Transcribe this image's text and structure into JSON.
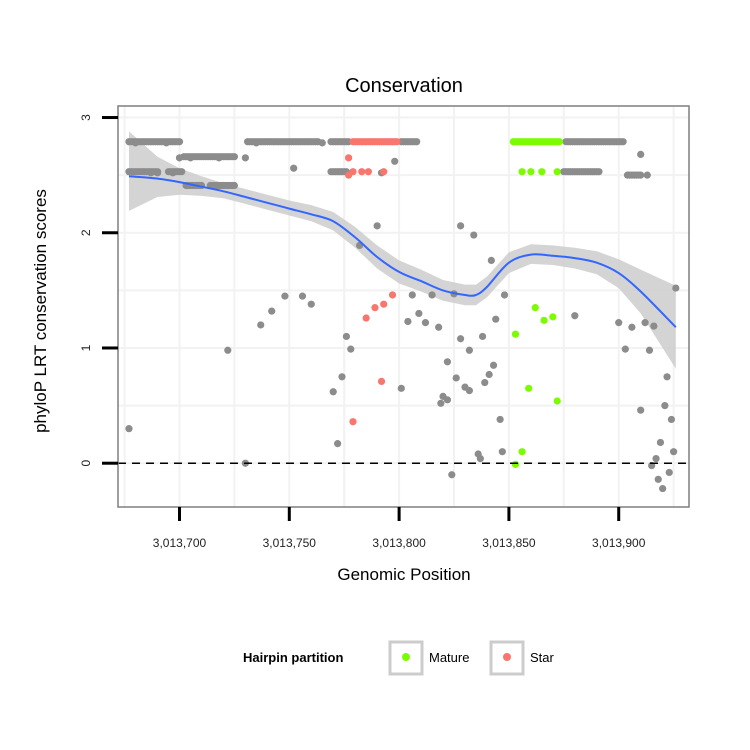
{
  "chart_data": {
    "type": "scatter",
    "title": "Conservation",
    "xlabel": "Genomic Position",
    "ylabel": "phyloP LRT conservation scores",
    "xlim": [
      3013672,
      3013932
    ],
    "ylim": [
      -0.38,
      3.1
    ],
    "x_ticks": [
      3013700,
      3013750,
      3013800,
      3013850,
      3013900
    ],
    "x_tick_labels": [
      "3,013,700",
      "3,013,750",
      "3,013,800",
      "3,013,850",
      "3,013,900"
    ],
    "y_ticks": [
      0,
      1,
      2,
      3
    ],
    "y_tick_labels": [
      "0",
      "1",
      "2",
      "3"
    ],
    "reference_line": {
      "y": 0,
      "style": "dashed"
    },
    "legend": {
      "title": "Hairpin partition",
      "position": "bottom",
      "entries": [
        {
          "label": "Mature",
          "color": "#7CFC00"
        },
        {
          "label": "Star",
          "color": "#F8766D"
        }
      ]
    },
    "colors": {
      "other": "#8c8c8c",
      "mature": "#7CFC00",
      "star": "#F8766D",
      "smooth_line": "#3366FF",
      "ribbon": "#cccccc",
      "panel_border": "#7f7f7f",
      "grid": "#f2f2f2"
    },
    "series": [
      {
        "name": "Other",
        "color": "#8c8c8c",
        "ranges": [
          {
            "x_from": 3013677,
            "x_to": 3013700,
            "step": 1,
            "y": 2.79
          },
          {
            "x_from": 3013702,
            "x_to": 3013725,
            "step": 1,
            "y": 2.66
          },
          {
            "x_from": 3013731,
            "x_to": 3013763,
            "step": 1,
            "y": 2.79
          },
          {
            "x_from": 3013769,
            "x_to": 3013777,
            "step": 1,
            "y": 2.79
          },
          {
            "x_from": 3013801,
            "x_to": 3013808,
            "step": 1,
            "y": 2.79
          },
          {
            "x_from": 3013876,
            "x_to": 3013902,
            "step": 1,
            "y": 2.79
          },
          {
            "x_from": 3013677,
            "x_to": 3013690,
            "step": 1,
            "y": 2.53
          },
          {
            "x_from": 3013695,
            "x_to": 3013701,
            "step": 1,
            "y": 2.53
          },
          {
            "x_from": 3013703,
            "x_to": 3013710,
            "step": 1,
            "y": 2.41
          },
          {
            "x_from": 3013714,
            "x_to": 3013724,
            "step": 1,
            "y": 2.41
          },
          {
            "x_from": 3013769,
            "x_to": 3013776,
            "step": 1,
            "y": 2.53
          },
          {
            "x_from": 3013875,
            "x_to": 3013891,
            "step": 1,
            "y": 2.53
          },
          {
            "x_from": 3013904,
            "x_to": 3013910,
            "step": 1,
            "y": 2.5
          }
        ],
        "points": [
          [
            3013677,
            0.3
          ],
          [
            3013680,
            2.78
          ],
          [
            3013687,
            2.52
          ],
          [
            3013690,
            2.52
          ],
          [
            3013694,
            2.78
          ],
          [
            3013697,
            2.52
          ],
          [
            3013700,
            2.65
          ],
          [
            3013705,
            2.65
          ],
          [
            3013710,
            2.41
          ],
          [
            3013718,
            2.65
          ],
          [
            3013722,
            0.98
          ],
          [
            3013725,
            2.41
          ],
          [
            3013730,
            2.65
          ],
          [
            3013730,
            0
          ],
          [
            3013735,
            2.78
          ],
          [
            3013737,
            1.2
          ],
          [
            3013742,
            1.32
          ],
          [
            3013748,
            1.45
          ],
          [
            3013752,
            2.56
          ],
          [
            3013756,
            1.45
          ],
          [
            3013760,
            1.38
          ],
          [
            3013765,
            2.78
          ],
          [
            3013770,
            0.62
          ],
          [
            3013772,
            0.17
          ],
          [
            3013774,
            0.75
          ],
          [
            3013776,
            1.1
          ],
          [
            3013778,
            0.99
          ],
          [
            3013782,
            1.89
          ],
          [
            3013790,
            2.06
          ],
          [
            3013792,
            2.52
          ],
          [
            3013798,
            2.62
          ],
          [
            3013801,
            0.65
          ],
          [
            3013804,
            1.23
          ],
          [
            3013806,
            1.46
          ],
          [
            3013809,
            1.3
          ],
          [
            3013812,
            1.22
          ],
          [
            3013815,
            1.46
          ],
          [
            3013818,
            1.18
          ],
          [
            3013820,
            0.58
          ],
          [
            3013822,
            0.88
          ],
          [
            3013825,
            1.47
          ],
          [
            3013826,
            0.74
          ],
          [
            3013828,
            1.08
          ],
          [
            3013830,
            0.66
          ],
          [
            3013832,
            0.63
          ],
          [
            3013834,
            1.98
          ],
          [
            3013836,
            0.08
          ],
          [
            3013838,
            1.1
          ],
          [
            3013841,
            0.77
          ],
          [
            3013842,
            1.76
          ],
          [
            3013844,
            1.25
          ],
          [
            3013846,
            0.38
          ],
          [
            3013847,
            0.1
          ],
          [
            3013848,
            1.46
          ],
          [
            3013828,
            2.06
          ],
          [
            3013832,
            0.98
          ],
          [
            3013824,
            -0.1
          ],
          [
            3013837,
            0.04
          ],
          [
            3013822,
            0.55
          ],
          [
            3013819,
            0.52
          ],
          [
            3013839,
            0.7
          ],
          [
            3013843,
            0.85
          ],
          [
            3013880,
            1.28
          ],
          [
            3013900,
            1.22
          ],
          [
            3013903,
            0.99
          ],
          [
            3013906,
            1.18
          ],
          [
            3013910,
            0.46
          ],
          [
            3013910,
            2.68
          ],
          [
            3013912,
            1.22
          ],
          [
            3013914,
            0.98
          ],
          [
            3013915,
            -0.02
          ],
          [
            3013917,
            0.04
          ],
          [
            3013918,
            -0.14
          ],
          [
            3013920,
            -0.22
          ],
          [
            3013921,
            0.5
          ],
          [
            3013922,
            0.75
          ],
          [
            3013923,
            -0.08
          ],
          [
            3013924,
            0.38
          ],
          [
            3013925,
            0.1
          ],
          [
            3013926,
            1.52
          ],
          [
            3013919,
            0.18
          ],
          [
            3013913,
            2.5
          ],
          [
            3013916,
            1.19
          ]
        ]
      },
      {
        "name": "Mature",
        "color": "#7CFC00",
        "ranges": [
          {
            "x_from": 3013852,
            "x_to": 3013873,
            "step": 1,
            "y": 2.79
          }
        ],
        "points": [
          [
            3013856,
            2.53
          ],
          [
            3013860,
            2.53
          ],
          [
            3013865,
            2.53
          ],
          [
            3013872,
            2.53
          ],
          [
            3013853,
            1.12
          ],
          [
            3013856,
            0.1
          ],
          [
            3013853,
            -0.01
          ],
          [
            3013859,
            0.65
          ],
          [
            3013862,
            1.35
          ],
          [
            3013866,
            1.24
          ],
          [
            3013870,
            1.27
          ],
          [
            3013872,
            0.54
          ]
        ]
      },
      {
        "name": "Star",
        "color": "#F8766D",
        "ranges": [
          {
            "x_from": 3013779,
            "x_to": 3013799,
            "step": 1,
            "y": 2.79
          }
        ],
        "points": [
          [
            3013777,
            2.65
          ],
          [
            3013779,
            2.53
          ],
          [
            3013783,
            2.53
          ],
          [
            3013786,
            2.53
          ],
          [
            3013793,
            2.53
          ],
          [
            3013777,
            2.5
          ],
          [
            3013785,
            1.26
          ],
          [
            3013789,
            1.35
          ],
          [
            3013793,
            1.38
          ],
          [
            3013797,
            1.46
          ],
          [
            3013792,
            0.71
          ],
          [
            3013779,
            0.36
          ]
        ]
      }
    ],
    "smooth": {
      "x": [
        3013677,
        3013690,
        3013700,
        3013710,
        3013720,
        3013730,
        3013740,
        3013750,
        3013760,
        3013770,
        3013780,
        3013790,
        3013800,
        3013810,
        3013820,
        3013830,
        3013835,
        3013840,
        3013850,
        3013860,
        3013870,
        3013880,
        3013890,
        3013900,
        3013910,
        3013926
      ],
      "y": [
        2.49,
        2.47,
        2.44,
        2.4,
        2.36,
        2.31,
        2.26,
        2.21,
        2.16,
        2.1,
        1.96,
        1.79,
        1.66,
        1.58,
        1.5,
        1.46,
        1.46,
        1.53,
        1.74,
        1.81,
        1.8,
        1.78,
        1.74,
        1.65,
        1.49,
        1.18
      ],
      "lower": [
        2.19,
        2.31,
        2.33,
        2.32,
        2.3,
        2.25,
        2.2,
        2.15,
        2.1,
        2.02,
        1.87,
        1.69,
        1.56,
        1.49,
        1.41,
        1.37,
        1.37,
        1.44,
        1.65,
        1.73,
        1.72,
        1.69,
        1.64,
        1.52,
        1.3,
        0.82
      ],
      "upper": [
        2.88,
        2.66,
        2.56,
        2.49,
        2.43,
        2.38,
        2.33,
        2.28,
        2.24,
        2.18,
        2.05,
        1.89,
        1.76,
        1.68,
        1.59,
        1.55,
        1.55,
        1.62,
        1.83,
        1.9,
        1.89,
        1.87,
        1.84,
        1.77,
        1.68,
        1.54
      ]
    }
  }
}
